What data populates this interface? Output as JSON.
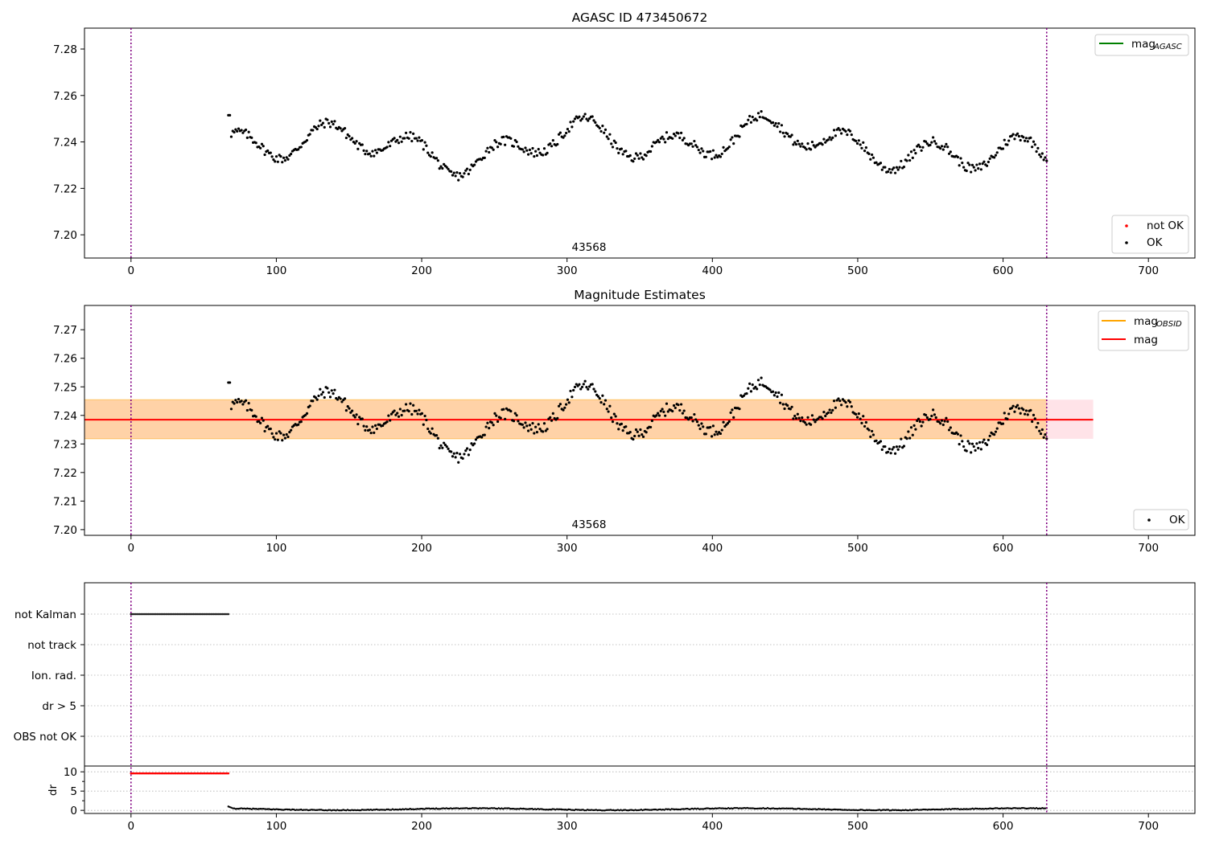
{
  "figure": {
    "title_top": "AGASC ID 473450672",
    "title_middle": "Magnitude Estimates",
    "obsid_label": "43568"
  },
  "colors": {
    "ok": "#000000",
    "not_ok": "#ff0000",
    "mag_agasc": "#008000",
    "mag_obsid": "#ffa500",
    "mag": "#ff0000",
    "band_outer": "#ffc0cb",
    "band_inner": "#ffa500",
    "vline": "#800080",
    "grid": "#b0b0b0"
  },
  "legends": {
    "top_line": [
      {
        "label": "mag",
        "sub": "AGASC",
        "color": "#008000"
      }
    ],
    "top_points": [
      {
        "label": "not OK",
        "color": "#ff0000"
      },
      {
        "label": "OK",
        "color": "#000000"
      }
    ],
    "mid_lines": [
      {
        "label": "mag",
        "sub": "OBSID",
        "color": "#ffa500"
      },
      {
        "label": "mag",
        "sub": "",
        "color": "#ff0000"
      }
    ],
    "mid_points": [
      {
        "label": "OK",
        "color": "#000000"
      }
    ]
  },
  "chart_data": [
    {
      "type": "scatter",
      "title": "AGASC ID 473450672",
      "xlim": [
        -32,
        732
      ],
      "ylim": [
        7.19,
        7.289
      ],
      "xticks": [
        0,
        100,
        200,
        300,
        400,
        500,
        600,
        700
      ],
      "yticks": [
        7.2,
        7.22,
        7.24,
        7.26,
        7.28
      ],
      "vertical_lines_x": [
        0,
        630
      ],
      "annotation": "43568",
      "series": [
        {
          "name": "OK",
          "x_start": 67,
          "x_end": 630,
          "n_points": 563
        }
      ]
    },
    {
      "type": "scatter",
      "title": "Magnitude Estimates",
      "xlim": [
        -32,
        732
      ],
      "ylim": [
        7.198,
        7.2785
      ],
      "xticks": [
        0,
        100,
        200,
        300,
        400,
        500,
        600,
        700
      ],
      "yticks": [
        7.2,
        7.21,
        7.22,
        7.23,
        7.24,
        7.25,
        7.26,
        7.27
      ],
      "vertical_lines_x": [
        0,
        630
      ],
      "annotation": "43568",
      "mag": 7.2385,
      "mag_band": [
        7.2318,
        7.2455
      ],
      "band_x_extent": [
        -32,
        662
      ],
      "series": [
        {
          "name": "OK",
          "x_start": 67,
          "x_end": 630
        }
      ]
    },
    {
      "type": "scatter",
      "title": "",
      "xlim": [
        -32,
        732
      ],
      "flag_rows": [
        "not Kalman",
        "not track",
        "Ion. rad.",
        "dr > 5",
        "OBS not OK"
      ],
      "flag_intervals": [
        {
          "row": "not Kalman",
          "x_start": 0,
          "x_end": 67
        }
      ],
      "dr": {
        "ylabel": "dr",
        "yticks": [
          0,
          5,
          10
        ],
        "ylim": [
          -0.8,
          11.5
        ],
        "not_ok": {
          "x_start": 0,
          "x_end": 67,
          "value": 9.6
        },
        "ok": {
          "x_start": 67,
          "x_end": 630,
          "start_value": 1.0,
          "typical_value": 0.3
        }
      },
      "xticks": [
        0,
        100,
        200,
        300,
        400,
        500,
        600,
        700
      ],
      "vertical_lines_x": [
        0,
        630
      ]
    }
  ]
}
